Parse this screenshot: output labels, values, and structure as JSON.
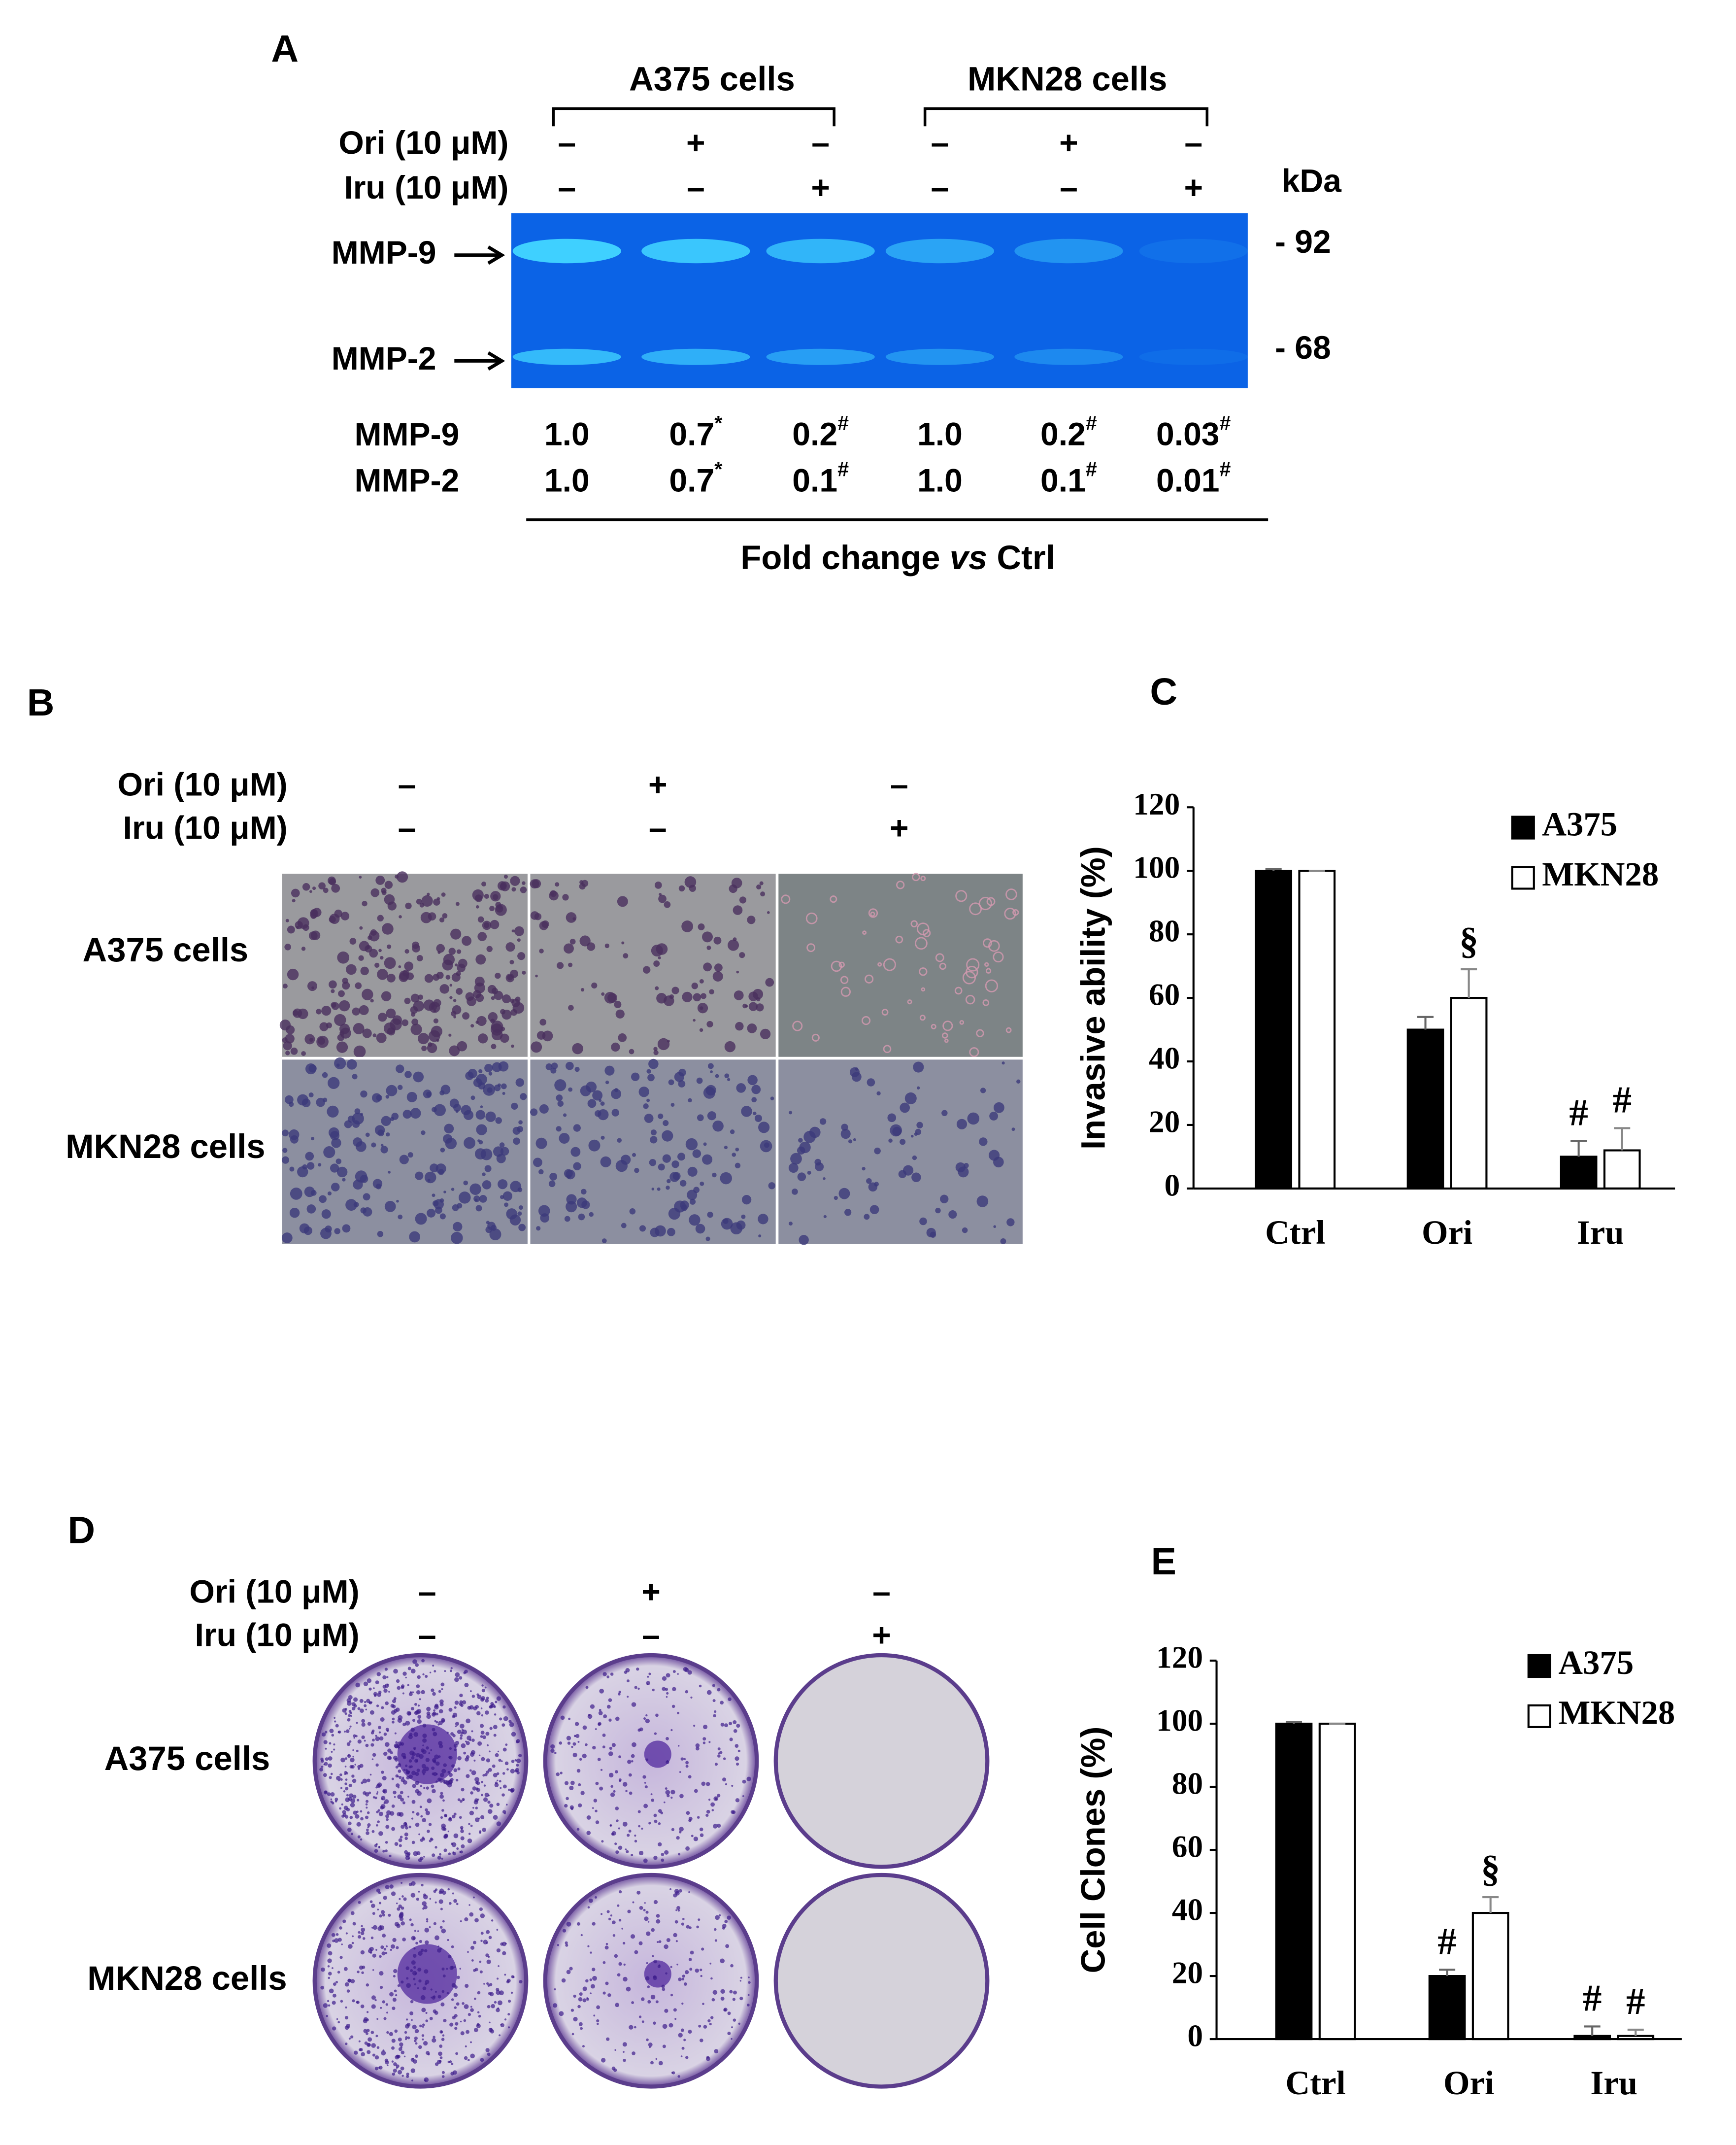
{
  "panel_a": {
    "label": "A",
    "groups": [
      "A375 cells",
      "MKN28 cells"
    ],
    "treatments": [
      {
        "name": "Ori (10 μM)",
        "signs": [
          "–",
          "+",
          "–",
          "–",
          "+",
          "–"
        ]
      },
      {
        "name": "Iru (10 μM)",
        "signs": [
          "–",
          "–",
          "+",
          "–",
          "–",
          "+"
        ]
      }
    ],
    "unit": "kDa",
    "markers": [
      "- 92",
      "- 68"
    ],
    "bands": [
      {
        "name": "MMP-9",
        "fold": [
          {
            "text": "1.0"
          },
          {
            "text": "0.7",
            "sup": "*"
          },
          {
            "text": "0.2",
            "sup": "#"
          },
          {
            "text": "1.0"
          },
          {
            "text": "0.2",
            "sup": "#"
          },
          {
            "text": "0.03",
            "sup": "#"
          }
        ]
      },
      {
        "name": "MMP-2",
        "fold": [
          {
            "text": "1.0"
          },
          {
            "text": "0.7",
            "sup": "*"
          },
          {
            "text": "0.1",
            "sup": "#"
          },
          {
            "text": "1.0"
          },
          {
            "text": "0.1",
            "sup": "#"
          },
          {
            "text": "0.01",
            "sup": "#"
          }
        ]
      }
    ],
    "footer": [
      "Fold change ",
      "vs",
      " Ctrl"
    ]
  },
  "panel_b": {
    "label": "B",
    "treatments": [
      {
        "name": "Ori (10 μM)",
        "signs": [
          "–",
          "+",
          "–"
        ]
      },
      {
        "name": "Iru (10 μM)",
        "signs": [
          "–",
          "–",
          "+"
        ]
      }
    ],
    "rows": [
      "A375 cells",
      "MKN28 cells"
    ]
  },
  "panel_d": {
    "label": "D",
    "treatments": [
      {
        "name": "Ori (10 μM)",
        "signs": [
          "–",
          "+",
          "–"
        ]
      },
      {
        "name": "Iru (10 μM)",
        "signs": [
          "–",
          "–",
          "+"
        ]
      }
    ],
    "rows": [
      "A375 cells",
      "MKN28 cells"
    ]
  },
  "chart_data": [
    {
      "type": "bar",
      "label": "C",
      "y_label": "Invasive ability (%)",
      "categories": [
        "Ctrl",
        "Ori",
        "Iru"
      ],
      "series": [
        {
          "name": "A375",
          "color": "#000000",
          "values": [
            100,
            50,
            10
          ],
          "errors": [
            0.5,
            4,
            5
          ],
          "annotations": [
            null,
            null,
            "#"
          ]
        },
        {
          "name": "MKN28",
          "color": "#ffffff",
          "values": [
            100,
            60,
            12
          ],
          "errors": [
            0,
            9,
            7
          ],
          "annotations": [
            null,
            "§",
            "#"
          ]
        }
      ],
      "ylim": [
        0,
        120
      ],
      "yticks": [
        0,
        20,
        40,
        60,
        80,
        100,
        120
      ]
    },
    {
      "type": "bar",
      "label": "E",
      "y_label": "Cell Clones (%)",
      "categories": [
        "Ctrl",
        "Ori",
        "Iru"
      ],
      "series": [
        {
          "name": "A375",
          "color": "#000000",
          "values": [
            100,
            20,
            1
          ],
          "errors": [
            0.5,
            2,
            3
          ],
          "annotations": [
            null,
            "#",
            "#"
          ]
        },
        {
          "name": "MKN28",
          "color": "#ffffff",
          "values": [
            100,
            40,
            1
          ],
          "errors": [
            0,
            5,
            2
          ],
          "annotations": [
            null,
            "§",
            "#"
          ]
        }
      ],
      "ylim": [
        0,
        120
      ],
      "yticks": [
        0,
        20,
        40,
        60,
        80,
        100,
        120
      ]
    }
  ]
}
